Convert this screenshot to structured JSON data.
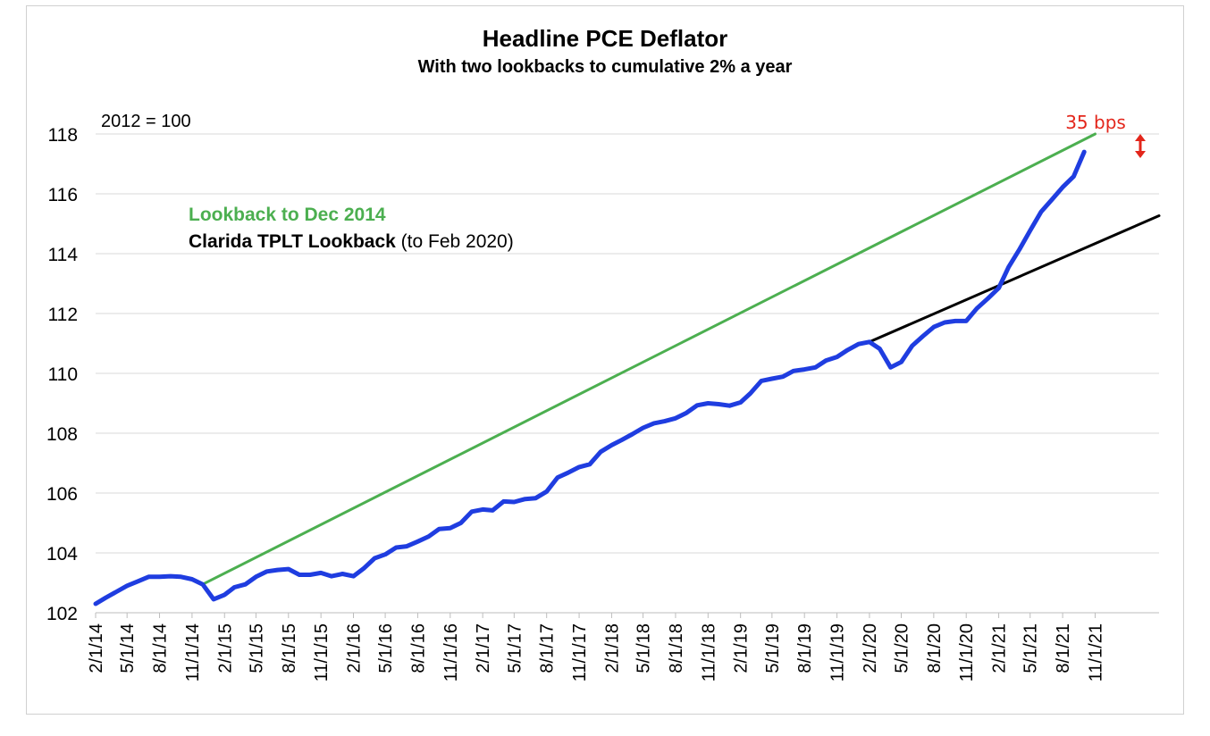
{
  "chart_data": {
    "type": "line",
    "title": "Headline PCE Deflator",
    "subtitle": "With two lookbacks to cumulative 2% a year",
    "index_note": "2012 = 100",
    "ylim": [
      102,
      118
    ],
    "yticks": [
      102,
      104,
      106,
      108,
      110,
      112,
      114,
      116,
      118
    ],
    "xlim": [
      "2014-02-01",
      "2022-05-01"
    ],
    "xtick_labels": [
      "2/1/14",
      "5/1/14",
      "8/1/14",
      "11/1/14",
      "2/1/15",
      "5/1/15",
      "8/1/15",
      "11/1/15",
      "2/1/16",
      "5/1/16",
      "8/1/16",
      "11/1/16",
      "2/1/17",
      "5/1/17",
      "8/1/17",
      "11/1/17",
      "2/1/18",
      "5/1/18",
      "8/1/18",
      "11/1/18",
      "2/1/19",
      "5/1/19",
      "8/1/19",
      "11/1/19",
      "2/1/20",
      "5/1/20",
      "8/1/20",
      "11/1/20",
      "2/1/21",
      "5/1/21",
      "8/1/21",
      "11/1/21"
    ],
    "grid": "horizontal",
    "annotations": {
      "lookback_2014": "Lookback to Dec 2014",
      "clarida_bold": "Clarida TPLT Lookback",
      "clarida_rest": " (to Feb 2020)",
      "gap": "35 bps"
    },
    "series": [
      {
        "color": "#1f3de0",
        "x": [
          "2014-02-01",
          "2014-03-01",
          "2014-04-01",
          "2014-05-01",
          "2014-06-01",
          "2014-07-01",
          "2014-08-01",
          "2014-09-01",
          "2014-10-01",
          "2014-11-01",
          "2014-12-01",
          "2015-01-01",
          "2015-02-01",
          "2015-03-01",
          "2015-04-01",
          "2015-05-01",
          "2015-06-01",
          "2015-07-01",
          "2015-08-01",
          "2015-09-01",
          "2015-10-01",
          "2015-11-01",
          "2015-12-01",
          "2016-01-01",
          "2016-02-01",
          "2016-03-01",
          "2016-04-01",
          "2016-05-01",
          "2016-06-01",
          "2016-07-01",
          "2016-08-01",
          "2016-09-01",
          "2016-10-01",
          "2016-11-01",
          "2016-12-01",
          "2017-01-01",
          "2017-02-01",
          "2017-03-01",
          "2017-04-01",
          "2017-05-01",
          "2017-06-01",
          "2017-07-01",
          "2017-08-01",
          "2017-09-01",
          "2017-10-01",
          "2017-11-01",
          "2017-12-01",
          "2018-01-01",
          "2018-02-01",
          "2018-03-01",
          "2018-04-01",
          "2018-05-01",
          "2018-06-01",
          "2018-07-01",
          "2018-08-01",
          "2018-09-01",
          "2018-10-01",
          "2018-11-01",
          "2018-12-01",
          "2019-01-01",
          "2019-02-01",
          "2019-03-01",
          "2019-04-01",
          "2019-05-01",
          "2019-06-01",
          "2019-07-01",
          "2019-08-01",
          "2019-09-01",
          "2019-10-01",
          "2019-11-01",
          "2019-12-01",
          "2020-01-01",
          "2020-02-01",
          "2020-03-01",
          "2020-04-01",
          "2020-05-01",
          "2020-06-01",
          "2020-07-01",
          "2020-08-01",
          "2020-09-01",
          "2020-10-01",
          "2020-11-01",
          "2020-12-01",
          "2021-01-01",
          "2021-02-01",
          "2021-03-01",
          "2021-04-01",
          "2021-05-01",
          "2021-06-01",
          "2021-07-01",
          "2021-08-01",
          "2021-09-01",
          "2021-10-01"
        ],
        "values": [
          102.3,
          102.5,
          102.7,
          102.9,
          103.05,
          103.2,
          103.2,
          103.22,
          103.2,
          103.12,
          102.95,
          102.45,
          102.6,
          102.85,
          102.95,
          103.2,
          103.38,
          103.43,
          103.46,
          103.27,
          103.27,
          103.33,
          103.22,
          103.3,
          103.22,
          103.48,
          103.82,
          103.95,
          104.18,
          104.22,
          104.38,
          104.55,
          104.8,
          104.83,
          105.0,
          105.38,
          105.45,
          105.42,
          105.72,
          105.7,
          105.8,
          105.83,
          106.05,
          106.52,
          106.68,
          106.87,
          106.96,
          107.38,
          107.6,
          107.77,
          107.97,
          108.18,
          108.33,
          108.4,
          108.5,
          108.68,
          108.93,
          109.0,
          108.97,
          108.92,
          109.03,
          109.33,
          109.75,
          109.82,
          109.89,
          110.08,
          110.13,
          110.2,
          110.43,
          110.55,
          110.78,
          110.98,
          111.05,
          110.82,
          110.2,
          110.38,
          110.92,
          111.24,
          111.55,
          111.7,
          111.75,
          111.75,
          112.17,
          112.5,
          112.85,
          113.55,
          114.15,
          114.77,
          115.4,
          115.8,
          116.22,
          116.58,
          117.4
        ]
      },
      {
        "color": "#4caf50",
        "x": [
          "2014-12-01",
          "2021-11-01"
        ],
        "values": [
          102.95,
          118.0
        ]
      },
      {
        "color": "#000000",
        "x": [
          "2020-02-01",
          "2022-05-01"
        ],
        "values": [
          111.05,
          115.27
        ]
      }
    ]
  }
}
